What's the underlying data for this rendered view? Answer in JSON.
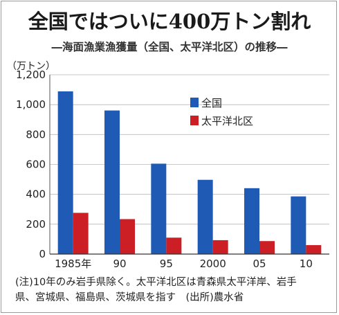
{
  "title": "全国ではついに400万トン割れ",
  "subtitle": "―海面漁業漁獲量（全国、太平洋北区）の推移―",
  "chart_data": {
    "type": "bar",
    "unit_label": "（万トン）",
    "categories": [
      "1985年",
      "90",
      "95",
      "2000",
      "05",
      "10"
    ],
    "series": [
      {
        "name": "全国",
        "color": "#1f5bb5",
        "values": [
          1089,
          961,
          605,
          497,
          441,
          386
        ]
      },
      {
        "name": "太平洋北区",
        "color": "#cc1f25",
        "values": [
          276,
          234,
          110,
          93,
          87,
          60
        ]
      }
    ],
    "ylim": [
      0,
      1200
    ],
    "yticks": [
      "0",
      "200",
      "400",
      "600",
      "800",
      "1,000",
      "1,200"
    ],
    "grid": true,
    "legend_position": "top-right"
  },
  "note": {
    "line1": "(注)10年のみ岩手県除く。太平洋北区は青森県太平洋岸、岩手",
    "line2": "県、宮城県、福島県、茨城県を指す　(出所)農水省"
  }
}
